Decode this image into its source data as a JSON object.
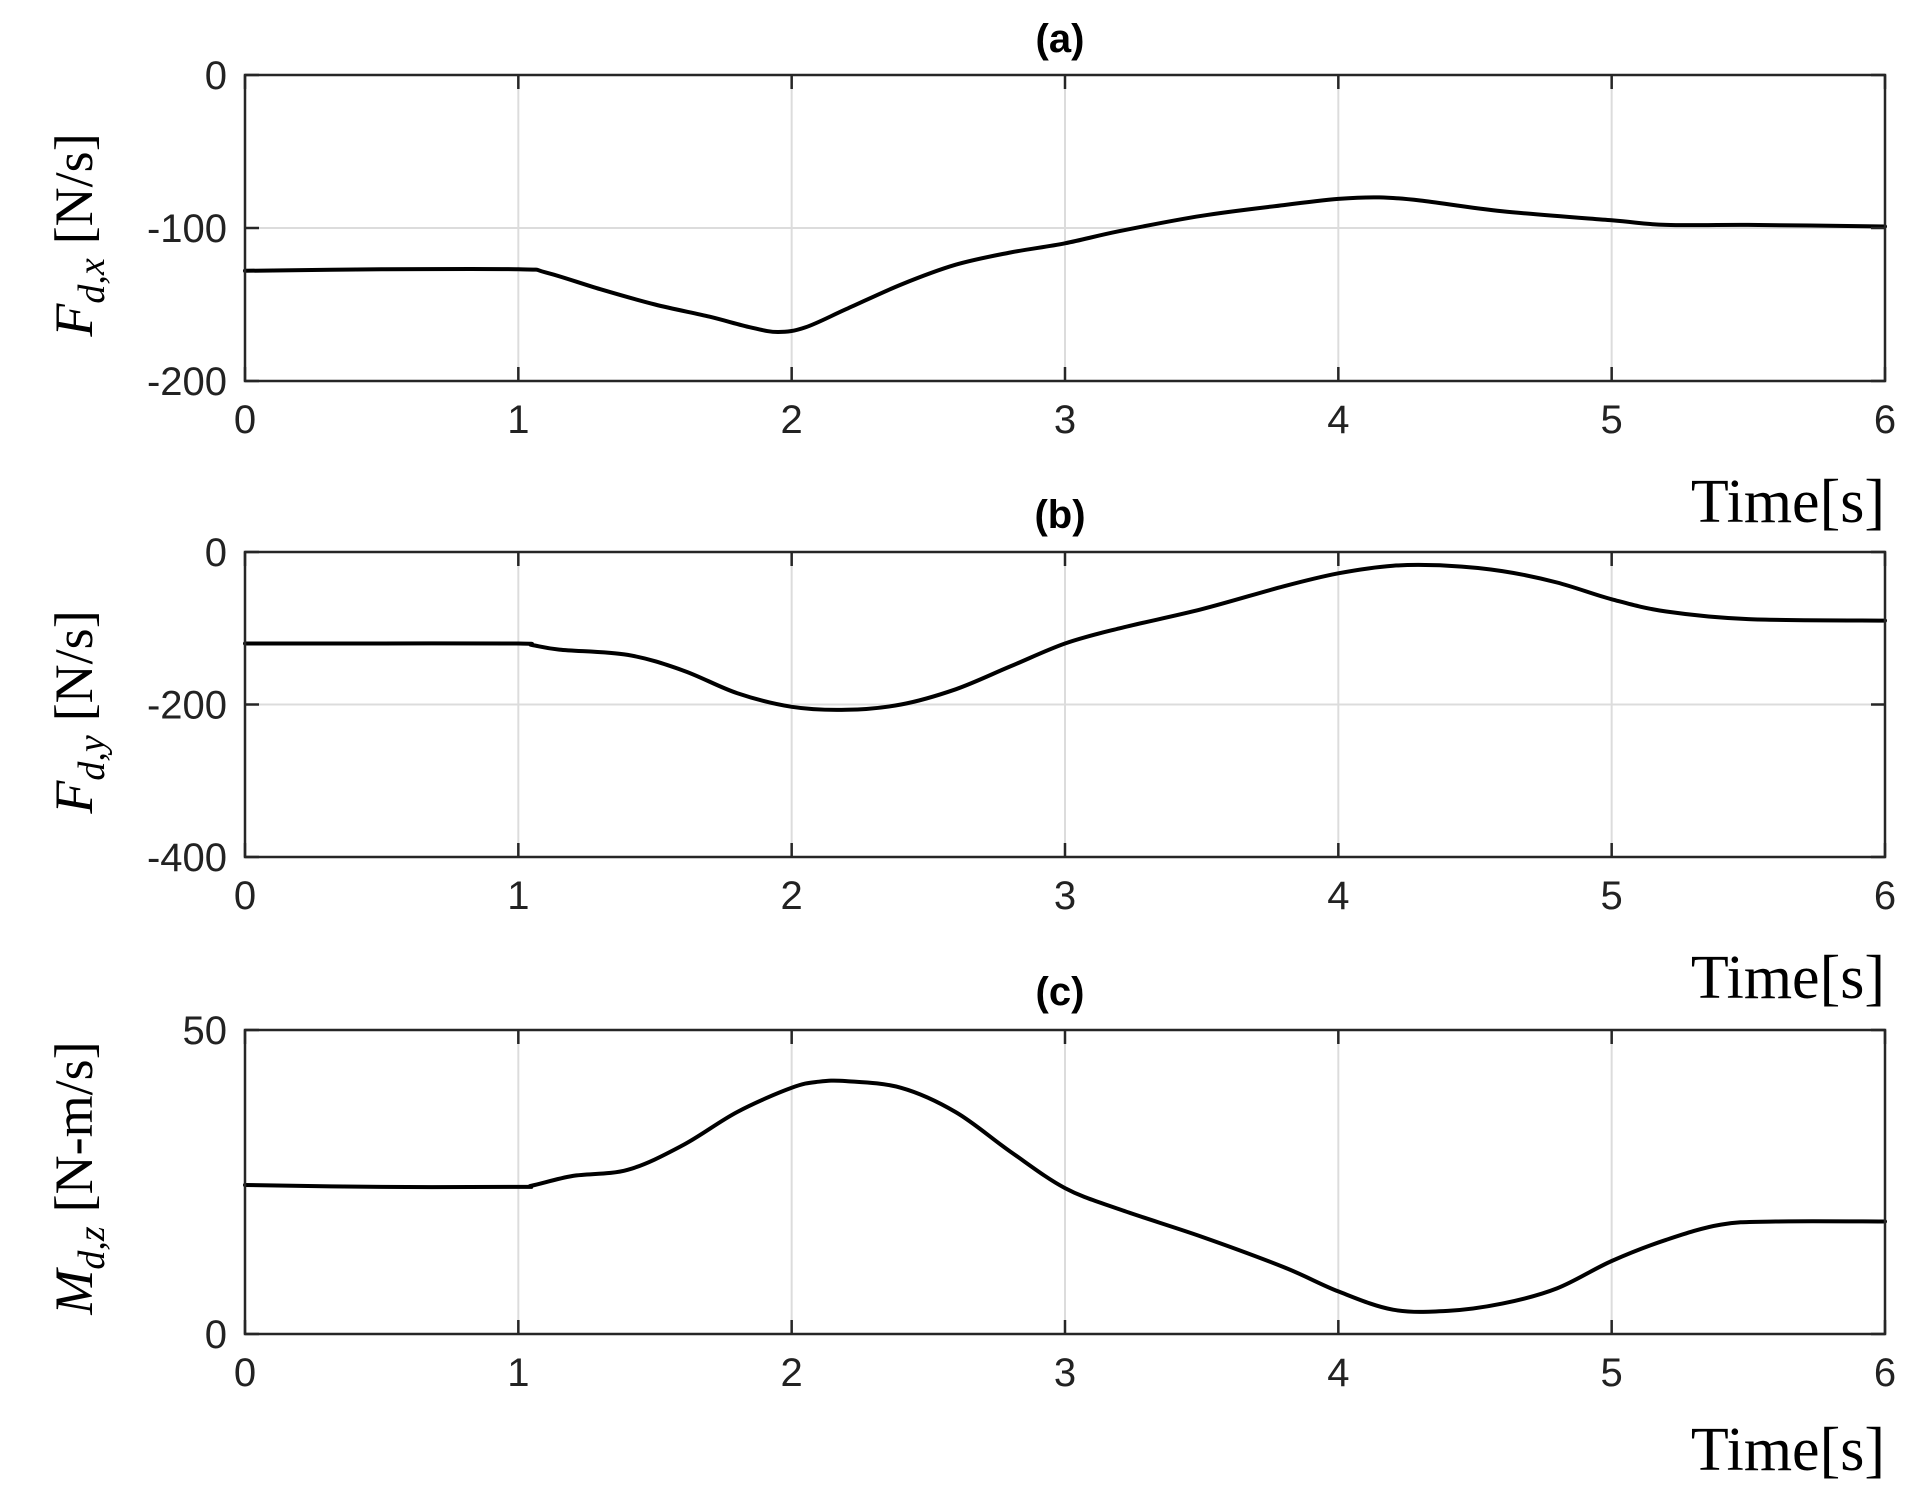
{
  "chart_data": [
    {
      "type": "line",
      "title": "(a)",
      "ylabel": {
        "main": "F",
        "sub": "d,x",
        "unit": "[N/s]"
      },
      "xlabel": "Time[s]",
      "xlim": [
        0,
        6
      ],
      "ylim": [
        -200,
        0
      ],
      "xticks": [
        0,
        1,
        2,
        3,
        4,
        5,
        6
      ],
      "yticks": [
        -200,
        -100,
        0
      ],
      "xtick_labels": [
        "0",
        "1",
        "2",
        "3",
        "4",
        "5",
        "6"
      ],
      "ytick_labels": [
        "-200",
        "-100",
        "0"
      ],
      "grid": true,
      "series": [
        {
          "color": "#000000",
          "x": [
            0,
            0.5,
            1.0,
            1.1,
            1.3,
            1.5,
            1.7,
            1.85,
            1.95,
            2.05,
            2.2,
            2.4,
            2.6,
            2.8,
            3.0,
            3.2,
            3.5,
            3.8,
            4.0,
            4.15,
            4.3,
            4.6,
            5.0,
            5.2,
            5.5,
            6.0
          ],
          "y": [
            -128,
            -127,
            -127,
            -129,
            -140,
            -150,
            -158,
            -165,
            -168,
            -165,
            -153,
            -137,
            -124,
            -116,
            -110,
            -102,
            -92,
            -85,
            -81,
            -80,
            -82,
            -89,
            -95,
            -98,
            -98,
            -99
          ]
        }
      ]
    },
    {
      "type": "line",
      "title": "(b)",
      "ylabel": {
        "main": "F",
        "sub": "d,y",
        "unit": "[N/s]"
      },
      "xlabel": "Time[s]",
      "xlim": [
        0,
        6
      ],
      "ylim": [
        -400,
        0
      ],
      "xticks": [
        0,
        1,
        2,
        3,
        4,
        5,
        6
      ],
      "yticks": [
        -400,
        -200,
        0
      ],
      "xtick_labels": [
        "0",
        "1",
        "2",
        "3",
        "4",
        "5",
        "6"
      ],
      "ytick_labels": [
        "-400",
        "-200",
        "0"
      ],
      "grid": true,
      "series": [
        {
          "color": "#000000",
          "x": [
            0,
            0.5,
            1.0,
            1.05,
            1.15,
            1.4,
            1.6,
            1.8,
            2.0,
            2.2,
            2.4,
            2.6,
            2.8,
            3.0,
            3.2,
            3.5,
            3.8,
            4.0,
            4.2,
            4.4,
            4.6,
            4.8,
            5.0,
            5.2,
            5.5,
            6.0
          ],
          "y": [
            -120,
            -120,
            -120,
            -122,
            -128,
            -135,
            -155,
            -185,
            -203,
            -207,
            -200,
            -180,
            -150,
            -120,
            -100,
            -75,
            -45,
            -28,
            -18,
            -18,
            -25,
            -40,
            -62,
            -78,
            -88,
            -90
          ]
        }
      ]
    },
    {
      "type": "line",
      "title": "(c)",
      "ylabel": {
        "main": "M",
        "sub": "d,z",
        "unit": "[N-m/s]"
      },
      "xlabel": "Time[s]",
      "xlim": [
        0,
        6
      ],
      "ylim": [
        0,
        50
      ],
      "xticks": [
        0,
        1,
        2,
        3,
        4,
        5,
        6
      ],
      "yticks": [
        0,
        50
      ],
      "xtick_labels": [
        "0",
        "1",
        "2",
        "3",
        "4",
        "5",
        "6"
      ],
      "ytick_labels": [
        "0",
        "50"
      ],
      "grid": true,
      "series": [
        {
          "color": "#000000",
          "x": [
            0,
            0.5,
            1.0,
            1.05,
            1.2,
            1.4,
            1.6,
            1.8,
            2.0,
            2.1,
            2.2,
            2.4,
            2.6,
            2.8,
            3.0,
            3.2,
            3.5,
            3.8,
            4.0,
            4.2,
            4.4,
            4.6,
            4.8,
            5.0,
            5.2,
            5.4,
            5.6,
            6.0
          ],
          "y": [
            24.5,
            24.2,
            24.2,
            24.4,
            26.0,
            27.0,
            31.0,
            36.5,
            40.5,
            41.5,
            41.6,
            40.5,
            36.5,
            30.0,
            24.0,
            20.5,
            16.0,
            11.0,
            7.0,
            4.0,
            3.8,
            5.0,
            7.5,
            12.0,
            15.5,
            18.0,
            18.5,
            18.5
          ]
        }
      ]
    }
  ]
}
